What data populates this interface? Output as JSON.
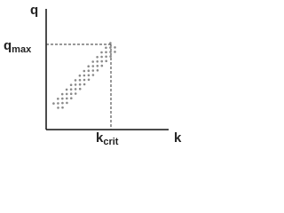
{
  "axes": {
    "y_label": "q",
    "x_label": "k"
  },
  "annotations": [
    {
      "base": "q",
      "subscript": "max"
    },
    {
      "base": "k",
      "subscript": "crit"
    }
  ]
}
